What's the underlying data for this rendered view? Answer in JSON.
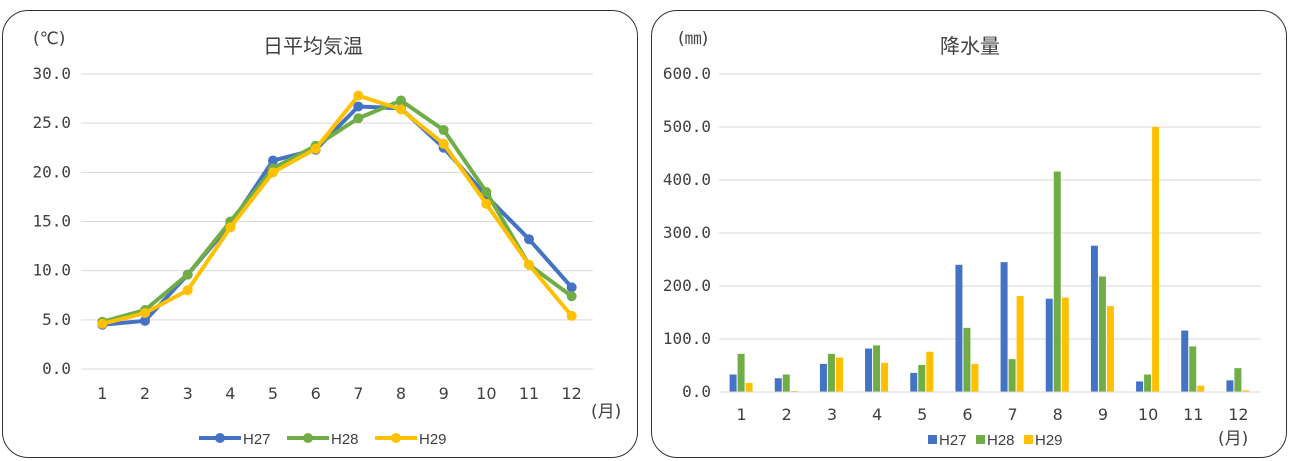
{
  "chart_data": [
    {
      "type": "line",
      "title": "日平均気温",
      "ylabel": "(℃)",
      "xlabel": "(月)",
      "categories": [
        "1",
        "2",
        "3",
        "4",
        "5",
        "6",
        "7",
        "8",
        "9",
        "10",
        "11",
        "12"
      ],
      "ylim": [
        0,
        30
      ],
      "yticks": [
        "0.0",
        "5.0",
        "10.0",
        "15.0",
        "20.0",
        "25.0",
        "30.0"
      ],
      "grid": true,
      "legend": "bottom",
      "series": [
        {
          "name": "H27",
          "color": "#4472c4",
          "values": [
            4.5,
            4.9,
            9.6,
            14.7,
            21.2,
            22.3,
            26.7,
            26.5,
            22.5,
            17.6,
            13.2,
            8.3
          ]
        },
        {
          "name": "H28",
          "color": "#70ad47",
          "values": [
            4.8,
            6.0,
            9.6,
            15.0,
            20.4,
            22.7,
            25.5,
            27.3,
            24.3,
            18.0,
            10.6,
            7.4
          ]
        },
        {
          "name": "H29",
          "color": "#ffc000",
          "values": [
            4.6,
            5.7,
            8.0,
            14.4,
            20.0,
            22.4,
            27.8,
            26.4,
            22.9,
            16.8,
            10.6,
            5.4
          ]
        }
      ]
    },
    {
      "type": "bar",
      "title": "降水量",
      "ylabel": "(㎜)",
      "xlabel": "(月)",
      "categories": [
        "1",
        "2",
        "3",
        "4",
        "5",
        "6",
        "7",
        "8",
        "9",
        "10",
        "11",
        "12"
      ],
      "ylim": [
        0,
        600
      ],
      "yticks": [
        "0.0",
        "100.0",
        "200.0",
        "300.0",
        "400.0",
        "500.0",
        "600.0"
      ],
      "grid": true,
      "legend": "bottom",
      "series": [
        {
          "name": "H27",
          "color": "#4472c4",
          "values": [
            33,
            26,
            53,
            82,
            36,
            240,
            245,
            176,
            276,
            20,
            116,
            22
          ]
        },
        {
          "name": "H28",
          "color": "#70ad47",
          "values": [
            72,
            33,
            72,
            88,
            51,
            121,
            62,
            416,
            218,
            33,
            86,
            45
          ]
        },
        {
          "name": "H29",
          "color": "#ffc000",
          "values": [
            17,
            2,
            65,
            55,
            76,
            53,
            181,
            178,
            162,
            500,
            12,
            3
          ]
        }
      ]
    }
  ]
}
